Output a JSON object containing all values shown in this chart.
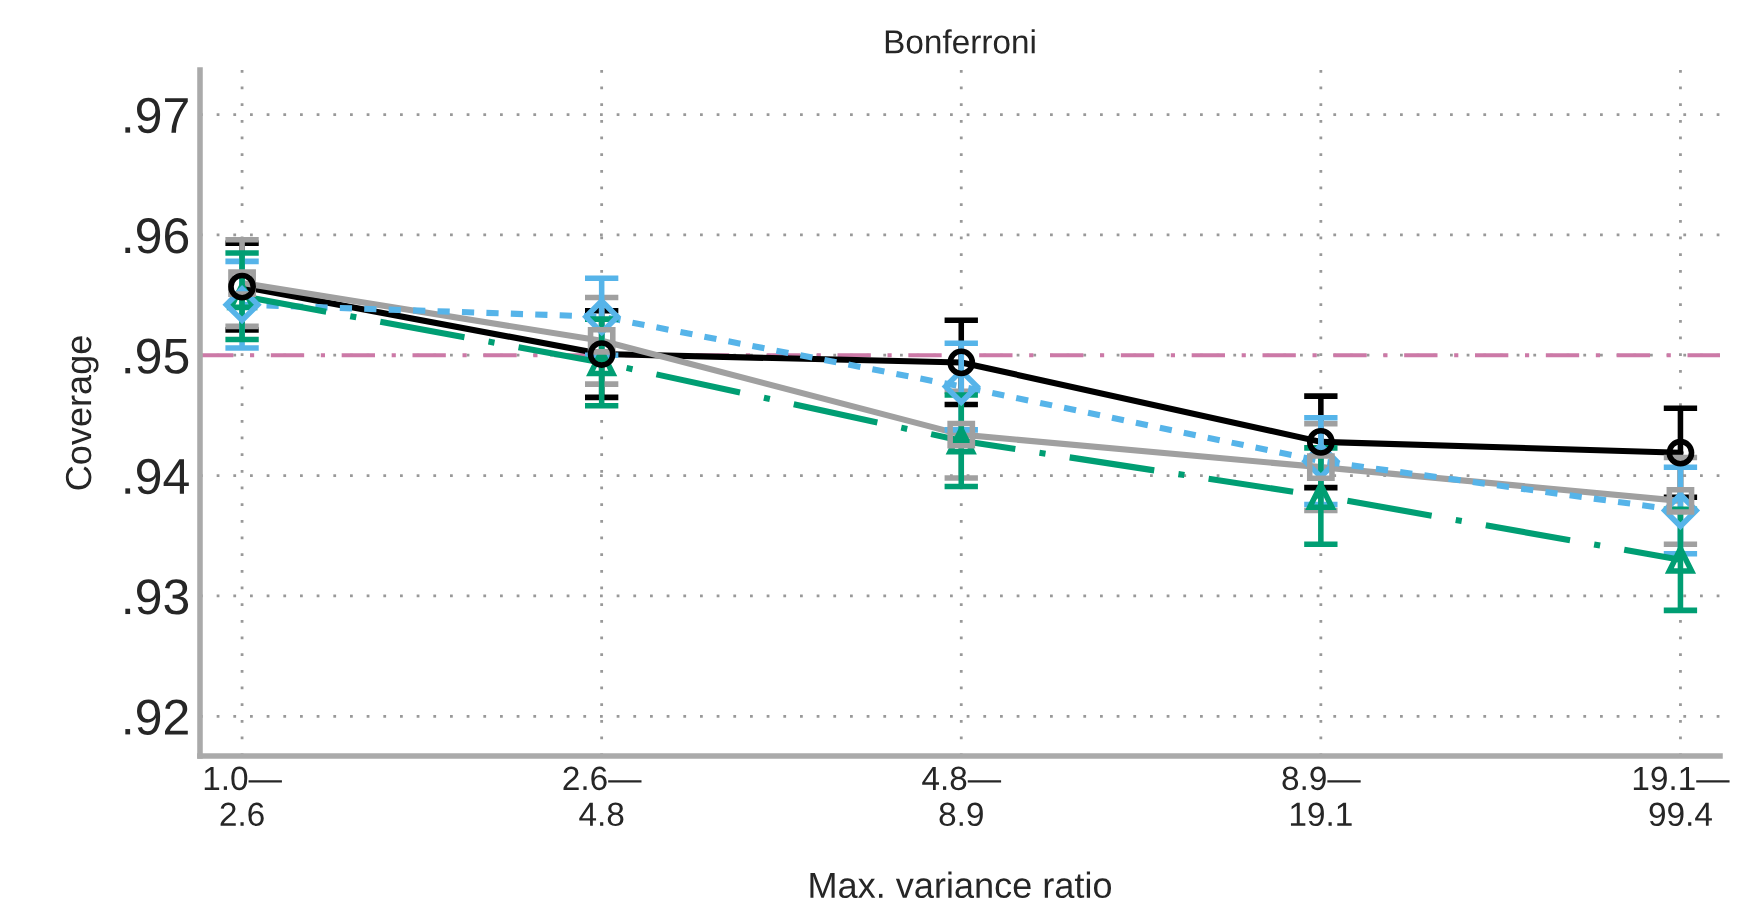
{
  "chart_data": {
    "type": "line",
    "title": "Bonferroni",
    "xlabel": "Max. variance ratio",
    "ylabel": "Coverage",
    "categories": [
      "1.0—\n2.6",
      "2.6—\n4.8",
      "4.8—\n8.9",
      "8.9—\n19.1",
      "19.1—\n99.4"
    ],
    "series": [
      {
        "color": "#000000",
        "values": [
          0.9557,
          0.9501,
          0.9494,
          0.9428,
          0.9419
        ],
        "errors": [
          0.0036,
          0.0036,
          0.0035,
          0.0038,
          0.0037
        ],
        "marker": "circle",
        "line_style": "solid"
      },
      {
        "color": "#a0a0a0",
        "values": [
          0.956,
          0.9512,
          0.9434,
          0.9407,
          0.9379
        ],
        "errors": [
          0.0036,
          0.0036,
          0.0036,
          0.0036,
          0.0036
        ],
        "marker": "square",
        "line_style": "solid"
      },
      {
        "color": "#56b4e9",
        "values": [
          0.9542,
          0.9532,
          0.9474,
          0.9412,
          0.9371
        ],
        "errors": [
          0.0036,
          0.0032,
          0.0036,
          0.0036,
          0.0036
        ],
        "marker": "diamond",
        "line_style": "dotted"
      },
      {
        "color": "#009e73",
        "values": [
          0.9549,
          0.9494,
          0.9429,
          0.9383,
          0.933
        ],
        "errors": [
          0.0036,
          0.0036,
          0.0038,
          0.004,
          0.0042
        ],
        "marker": "triangle",
        "line_style": "dashdot"
      }
    ],
    "ylim": [
      0.9167,
      0.9737
    ],
    "yticks": [
      {
        "value": 0.92,
        "label": ".92"
      },
      {
        "value": 0.93,
        "label": ".93"
      },
      {
        "value": 0.94,
        "label": ".94"
      },
      {
        "value": 0.95,
        "label": ".95"
      },
      {
        "value": 0.96,
        "label": ".96"
      },
      {
        "value": 0.97,
        "label": ".97"
      }
    ],
    "ref_lines": [
      {
        "axis": "y",
        "value": 0.95,
        "color": "#cc79a7",
        "line_style": "dashdot"
      }
    ],
    "grid": true,
    "legend": false
  }
}
